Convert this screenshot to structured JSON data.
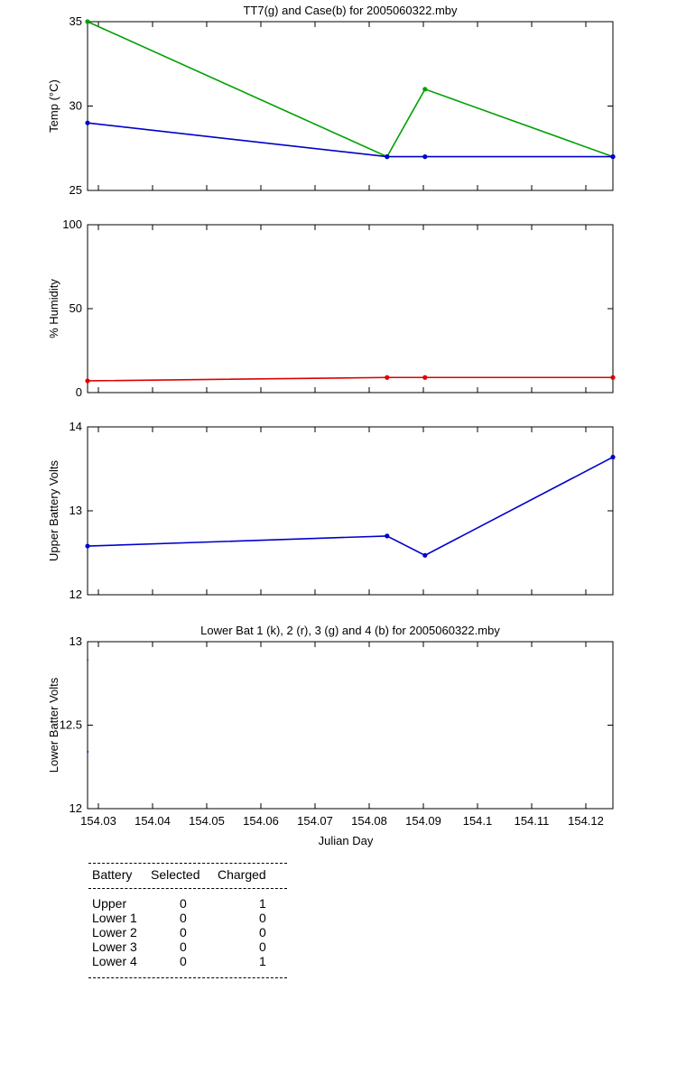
{
  "chart_data": [
    {
      "type": "line",
      "title": "TT7(g) and Case(b) for 2005060322.mby",
      "xlabel": "",
      "ylabel": "Temp  (°C)",
      "xlim": [
        154.028,
        154.125
      ],
      "ylim": [
        25,
        35
      ],
      "yticks": [
        25,
        30,
        35
      ],
      "series": [
        {
          "color": "#00a000",
          "x": [
            154.028,
            154.0833,
            154.0903,
            154.125
          ],
          "y": [
            35,
            27,
            31,
            27
          ]
        },
        {
          "color": "#0000cc",
          "x": [
            154.028,
            154.0833,
            154.0903,
            154.125
          ],
          "y": [
            29,
            27,
            27,
            27
          ]
        }
      ]
    },
    {
      "type": "line",
      "title": "",
      "xlabel": "",
      "ylabel": "% Humidity",
      "xlim": [
        154.028,
        154.125
      ],
      "ylim": [
        0,
        100
      ],
      "yticks": [
        0,
        50,
        100
      ],
      "series": [
        {
          "color": "#dd0000",
          "x": [
            154.028,
            154.0833,
            154.0903,
            154.125
          ],
          "y": [
            7,
            9,
            9,
            9
          ]
        }
      ]
    },
    {
      "type": "line",
      "title": "",
      "xlabel": "",
      "ylabel": "Upper Battery Volts",
      "xlim": [
        154.028,
        154.125
      ],
      "ylim": [
        12,
        14
      ],
      "yticks": [
        12,
        13,
        14
      ],
      "series": [
        {
          "color": "#0000cc",
          "x": [
            154.028,
            154.0833,
            154.0903,
            154.125
          ],
          "y": [
            12.58,
            12.7,
            12.47,
            13.64
          ]
        }
      ]
    },
    {
      "type": "line",
      "title": "Lower Bat 1 (k), 2 (r), 3 (g) and 4 (b) for 2005060322.mby",
      "xlabel": "Julian Day",
      "ylabel": "Lower Batter Volts",
      "xlim": [
        154.028,
        154.125
      ],
      "ylim": [
        12,
        13
      ],
      "yticks": [
        12,
        12.5,
        13
      ],
      "xticks": [
        "154.03",
        "154.04",
        "154.05",
        "154.06",
        "154.07",
        "154.08",
        "154.09",
        "154.1",
        "154.11",
        "154.12"
      ],
      "series": []
    }
  ],
  "table": {
    "headers": [
      "Battery",
      "Selected",
      "Charged"
    ],
    "rows": [
      [
        "Upper",
        "0",
        "1"
      ],
      [
        "Lower 1",
        "0",
        "0"
      ],
      [
        "Lower 2",
        "0",
        "0"
      ],
      [
        "Lower 3",
        "0",
        "0"
      ],
      [
        "Lower 4",
        "0",
        "1"
      ]
    ]
  }
}
